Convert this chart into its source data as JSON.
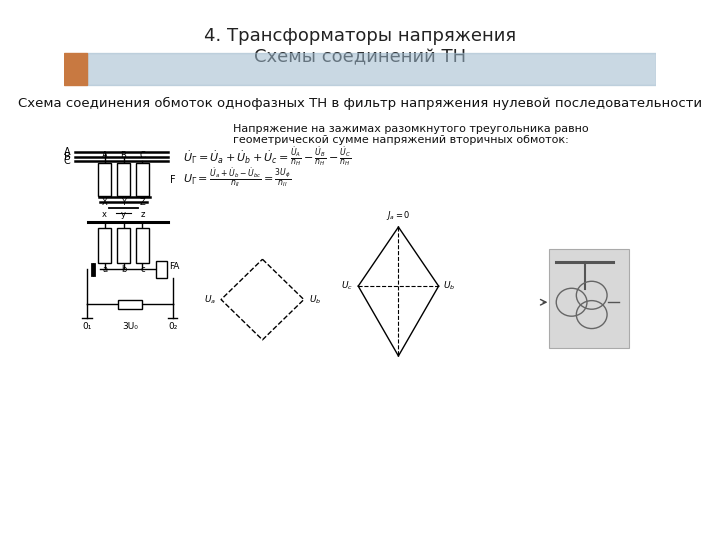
{
  "title_line1": "4. Трансформаторы напряжения",
  "title_line2": "Схемы соединений ТН",
  "subtitle": "Схема соединения обмоток однофазных ТН в фильтр напряжения нулевой последовательности",
  "text_line1": "Напряжение на зажимах разомкнутого треугольника равно",
  "text_line2": "геометрической сумме напряжений вторичных обмоток:",
  "bg_color": "#ffffff",
  "header_orange": "#C87941",
  "header_blue": "#9DB8CC"
}
